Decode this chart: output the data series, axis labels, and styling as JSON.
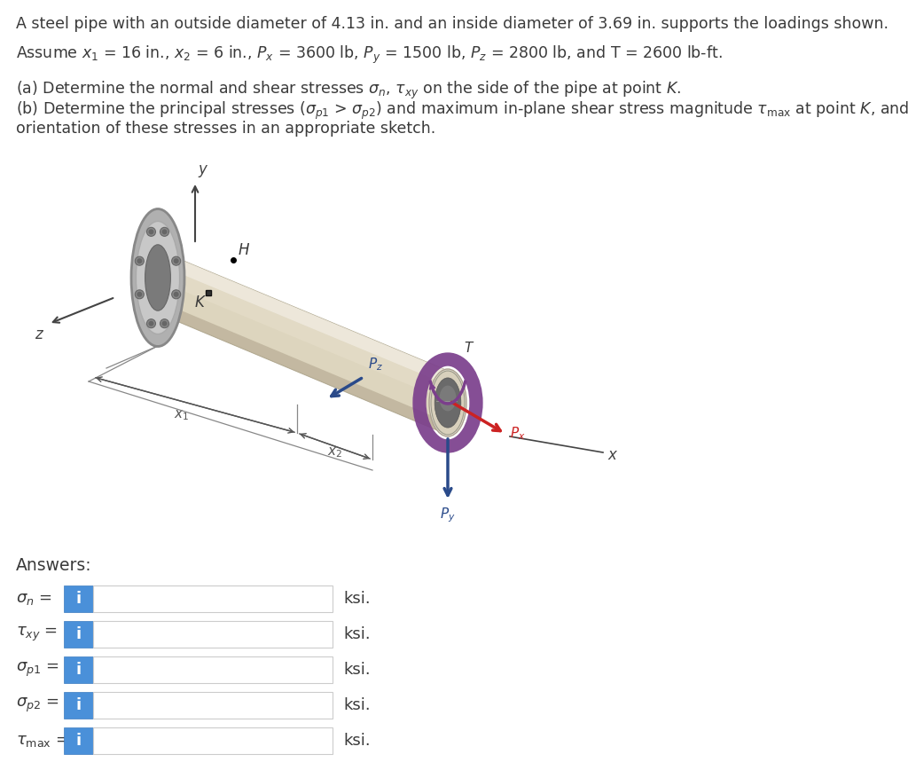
{
  "bg_color": "#ffffff",
  "text_color": "#3a3a3a",
  "pipe_body_color": "#ddd5be",
  "pipe_highlight_color": "#f0ebe0",
  "pipe_shadow_color": "#b8ad95",
  "pipe_rim_color": "#e8e2d4",
  "flange_outer_color": "#aaaaaa",
  "flange_mid_color": "#cccccc",
  "flange_inner_color": "#888888",
  "bolt_color": "#888888",
  "purple_color": "#7b3f8c",
  "blue_arrow_color": "#2a4a8a",
  "red_arrow_color": "#cc2222",
  "axis_color": "#444444",
  "blue_btn_color": "#4a90d9",
  "line1": "A steel pipe with an outside diameter of 4.13 in. and an inside diameter of 3.69 in. supports the loadings shown.",
  "line2": "Assume $x_1$ = 16 in., $x_2$ = 6 in., $P_x$ = 3600 lb, $P_y$ = 1500 lb, $P_z$ = 2800 lb, and T = 2600 lb-ft.",
  "line3a": "(a) Determine the normal and shear stresses $\\sigma_n$, $\\tau_{xy}$ on the side of the pipe at point $K$.",
  "line3b": "(b) Determine the principal stresses ($\\sigma_{p1}$ > $\\sigma_{p2}$) and maximum in-plane shear stress magnitude $\\tau_{\\mathrm{max}}$ at point $K$, and show the",
  "line3c": "orientation of these stresses in an appropriate sketch.",
  "field_labels": [
    "$\\sigma_n$ =",
    "$\\tau_{xy}$ =",
    "$\\sigma_{p1}$ =",
    "$\\sigma_{p2}$ =",
    "$\\tau_{\\mathrm{max}}$ ="
  ],
  "units": [
    "ksi.",
    "ksi.",
    "ksi.",
    "ksi.",
    "ksi."
  ],
  "fig_width": 10.24,
  "fig_height": 8.77,
  "dpi": 100
}
